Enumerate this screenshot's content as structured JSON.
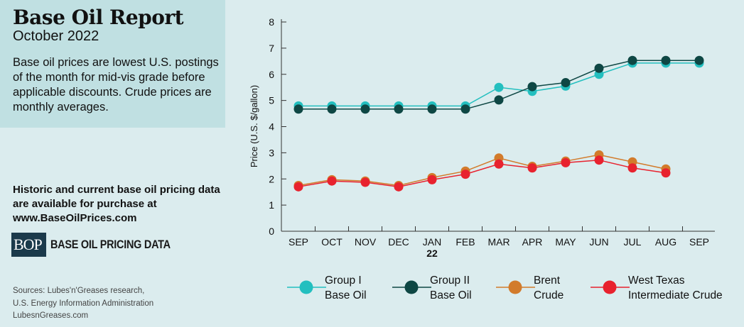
{
  "header": {
    "title": "Base Oil Report",
    "subtitle": "October 2022",
    "description": "Base oil prices are lowest U.S. postings of the month for mid-vis grade before applicable discounts. Crude prices are monthly averages."
  },
  "promo": {
    "line1": "Historic and current base oil pricing data are available for purchase at",
    "url": "www.BaseOilPrices.com"
  },
  "brand": {
    "logo_text": "BOP",
    "name": "BASE OIL PRICING DATA"
  },
  "footer": {
    "sources_line1": "Sources: Lubes'n'Greases research,",
    "sources_line2": "U.S. Energy Information Administration",
    "site": "LubesnGreases.com"
  },
  "chart_data": {
    "type": "line",
    "ylabel": "Price (U.S. $/gallon)",
    "ylim": [
      0,
      8
    ],
    "yticks": [
      0,
      1,
      2,
      3,
      4,
      5,
      6,
      7,
      8
    ],
    "categories": [
      "SEP",
      "OCT",
      "NOV",
      "DEC",
      "JAN",
      "FEB",
      "MAR",
      "APR",
      "MAY",
      "JUN",
      "JUL",
      "AUG",
      "SEP"
    ],
    "year_marker": {
      "category": "JAN",
      "text": "22"
    },
    "grid": false,
    "legend_position": "bottom",
    "series": [
      {
        "name": "Group I\nBase Oil",
        "color": "#23bfbf",
        "values": [
          4.79,
          4.79,
          4.79,
          4.79,
          4.79,
          4.79,
          5.5,
          5.35,
          5.55,
          6.0,
          6.43,
          6.43,
          6.43
        ]
      },
      {
        "name": "Group II\nBase Oil",
        "color": "#0e4744",
        "values": [
          4.67,
          4.67,
          4.67,
          4.67,
          4.67,
          4.67,
          5.02,
          5.53,
          5.68,
          6.23,
          6.53,
          6.53,
          6.53
        ]
      },
      {
        "name": "Brent\nCrude",
        "color": "#d27b2b",
        "values": [
          1.75,
          1.97,
          1.92,
          1.75,
          2.05,
          2.3,
          2.8,
          2.48,
          2.68,
          2.92,
          2.65,
          2.38,
          null
        ]
      },
      {
        "name": "West Texas\nIntermediate Crude",
        "color": "#e8222e",
        "values": [
          1.7,
          1.92,
          1.87,
          1.7,
          1.97,
          2.18,
          2.57,
          2.42,
          2.62,
          2.72,
          2.42,
          2.23,
          null
        ]
      }
    ]
  }
}
